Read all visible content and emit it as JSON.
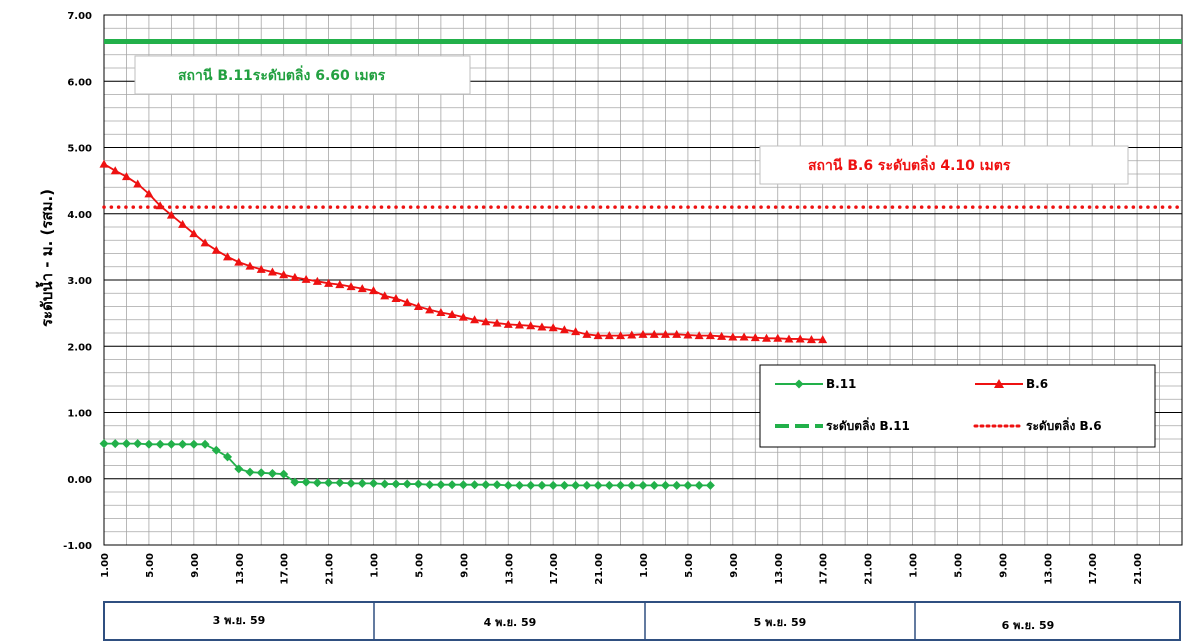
{
  "chart_data": {
    "type": "line",
    "ylabel": "ระดับน้ำ - ม. (รสม.)",
    "ylim": [
      -1,
      7
    ],
    "yticks": [
      "-1.00",
      "0.00",
      "1.00",
      "2.00",
      "3.00",
      "4.00",
      "5.00",
      "6.00",
      "7.00"
    ],
    "x_axis": {
      "start_hour": 1,
      "hours_total": 96,
      "tick_every_hours": 4
    },
    "xtick_labels": [
      "1.00",
      "5.00",
      "9.00",
      "13.00",
      "17.00",
      "21.00",
      "1.00",
      "5.00",
      "9.00",
      "13.00",
      "17.00",
      "21.00",
      "1.00",
      "5.00",
      "9.00",
      "13.00",
      "17.00",
      "21.00",
      "1.00",
      "5.00",
      "9.00",
      "13.00",
      "17.00",
      "21.00"
    ],
    "day_labels": [
      "3 พ.ย. 59",
      "4 พ.ย. 59",
      "5 พ.ย. 59",
      "6  พ.ย. 59"
    ],
    "grid": true,
    "series": [
      {
        "name": "B.11",
        "color": "#22b04a",
        "marker": "diamond",
        "hour_start": 1,
        "step_hours": 1,
        "values": [
          0.53,
          0.53,
          0.53,
          0.53,
          0.52,
          0.52,
          0.52,
          0.52,
          0.52,
          0.52,
          0.43,
          0.33,
          0.15,
          0.1,
          0.09,
          0.08,
          0.07,
          -0.05,
          -0.05,
          -0.06,
          -0.06,
          -0.06,
          -0.07,
          -0.07,
          -0.07,
          -0.08,
          -0.08,
          -0.08,
          -0.08,
          -0.09,
          -0.09,
          -0.09,
          -0.09,
          -0.09,
          -0.09,
          -0.09,
          -0.1,
          -0.1,
          -0.1,
          -0.1,
          -0.1,
          -0.1,
          -0.1,
          -0.1,
          -0.1,
          -0.1,
          -0.1,
          -0.1,
          -0.1,
          -0.1,
          -0.1,
          -0.1,
          -0.1,
          -0.1,
          -0.1
        ]
      },
      {
        "name": "B.6",
        "color": "#ee1111",
        "marker": "triangle",
        "hour_start": 1,
        "step_hours": 1,
        "values": [
          4.75,
          4.65,
          4.56,
          4.45,
          4.3,
          4.12,
          3.98,
          3.84,
          3.7,
          3.56,
          3.45,
          3.35,
          3.27,
          3.21,
          3.16,
          3.12,
          3.08,
          3.04,
          3.01,
          2.98,
          2.95,
          2.93,
          2.9,
          2.87,
          2.84,
          2.76,
          2.72,
          2.66,
          2.6,
          2.55,
          2.51,
          2.48,
          2.44,
          2.4,
          2.37,
          2.35,
          2.33,
          2.32,
          2.31,
          2.29,
          2.28,
          2.25,
          2.22,
          2.18,
          2.16,
          2.16,
          2.16,
          2.17,
          2.18,
          2.18,
          2.18,
          2.18,
          2.17,
          2.16,
          2.16,
          2.15,
          2.14,
          2.14,
          2.13,
          2.12,
          2.12,
          2.11,
          2.11,
          2.1,
          2.1
        ]
      },
      {
        "name": "ระดับตลิ่ง B.11",
        "color": "#22b04a",
        "style": "dashed",
        "constant": 6.6
      },
      {
        "name": "ระดับตลิ่ง B.6",
        "color": "#ee1111",
        "style": "dotted",
        "constant": 4.1
      }
    ],
    "annotations": [
      {
        "text": "สถานี B.11ระดับตลิ่ง  6.60 เมตร",
        "color": "#22a040"
      },
      {
        "text": "สถานี B.6  ระดับตลิ่ง  4.10 เมตร",
        "color": "#ee1111"
      }
    ],
    "legend": {
      "placement": "right",
      "entries": [
        "B.11",
        "B.6",
        "ระดับตลิ่ง B.11",
        "ระดับตลิ่ง B.6"
      ]
    }
  }
}
